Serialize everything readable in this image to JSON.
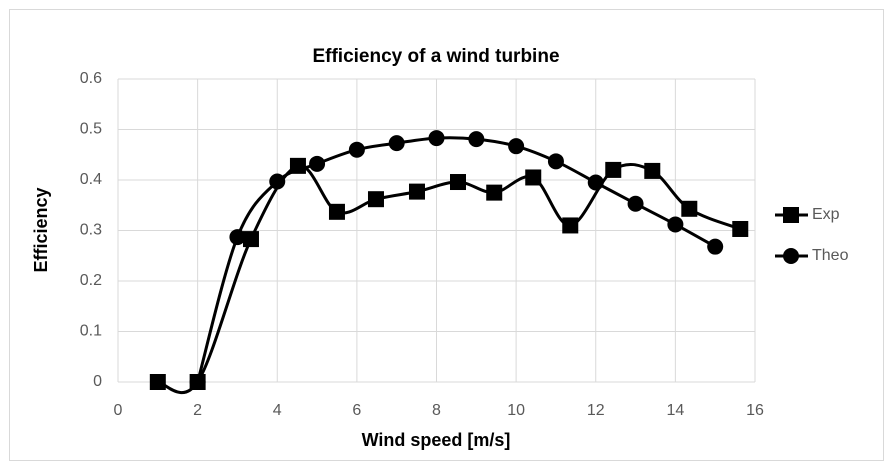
{
  "chart_data": {
    "type": "line",
    "title": "Efficiency of a wind turbine",
    "xlabel": "Wind speed [m/s]",
    "ylabel": "Efficiency",
    "xlim": [
      0,
      16
    ],
    "xticks": [
      0,
      2,
      4,
      6,
      8,
      10,
      12,
      14,
      16
    ],
    "ylim": [
      0,
      0.6
    ],
    "yticks": [
      0,
      0.1,
      0.2,
      0.3,
      0.4,
      0.5,
      0.6
    ],
    "grid": true,
    "smooth": true,
    "legend": "right",
    "series": [
      {
        "name": "Exp",
        "color": "#000000",
        "marker": "square",
        "x": [
          1,
          2,
          3.34,
          4.52,
          5.5,
          6.48,
          7.51,
          8.54,
          9.45,
          10.43,
          11.36,
          12.44,
          13.42,
          14.35,
          15.63
        ],
        "values": [
          0,
          0,
          0.283,
          0.428,
          0.337,
          0.362,
          0.377,
          0.396,
          0.375,
          0.405,
          0.31,
          0.42,
          0.418,
          0.343,
          0.303
        ]
      },
      {
        "name": "Theo",
        "color": "#000000",
        "marker": "circle",
        "x": [
          2,
          3,
          4,
          5,
          6,
          7,
          8,
          9,
          10,
          11,
          12,
          13,
          14,
          15
        ],
        "values": [
          0,
          0.287,
          0.397,
          0.432,
          0.46,
          0.473,
          0.483,
          0.481,
          0.467,
          0.437,
          0.395,
          0.353,
          0.312,
          0.268
        ]
      }
    ]
  }
}
